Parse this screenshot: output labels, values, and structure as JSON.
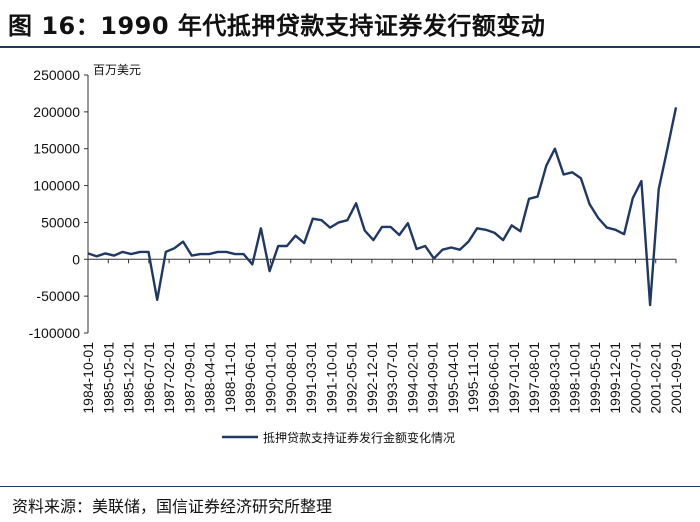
{
  "figure": {
    "title": "图 16：1990 年代抵押贷款支持证券发行额变动",
    "source": "资料来源：美联储，国信证券经济研究所整理"
  },
  "chart_data": {
    "type": "line",
    "title": "",
    "ylabel": "百万美元",
    "xlabel": "",
    "ylim": [
      -100000,
      250000
    ],
    "yticks": [
      -100000,
      -50000,
      0,
      50000,
      100000,
      150000,
      200000,
      250000
    ],
    "ytick_labels": [
      "-100000",
      "-50000",
      "0",
      "50000",
      "100000",
      "150000",
      "200000",
      "250000"
    ],
    "xtick_labels": [
      "1984-10-01",
      "1985-05-01",
      "1985-12-01",
      "1986-07-01",
      "1987-02-01",
      "1987-09-01",
      "1988-04-01",
      "1988-11-01",
      "1989-06-01",
      "1990-01-01",
      "1990-08-01",
      "1991-03-01",
      "1991-10-01",
      "1992-05-01",
      "1992-12-01",
      "1993-07-01",
      "1994-02-01",
      "1994-09-01",
      "1995-04-01",
      "1995-11-01",
      "1996-06-01",
      "1997-01-01",
      "1997-08-01",
      "1998-03-01",
      "1998-10-01",
      "1999-05-01",
      "1999-12-01",
      "2000-07-01",
      "2001-02-01",
      "2001-09-01"
    ],
    "legend_position": "bottom",
    "grid": false,
    "color": "#1f3864",
    "series": [
      {
        "name": "抵押贷款支持证券发行金额变化情况",
        "values": [
          8000,
          4000,
          8000,
          5000,
          10000,
          7000,
          10000,
          10000,
          -55000,
          10000,
          15000,
          24000,
          5000,
          7000,
          7000,
          10000,
          10000,
          7000,
          7000,
          -7000,
          42000,
          -16000,
          18000,
          18000,
          32000,
          22000,
          55000,
          53000,
          43000,
          50000,
          53000,
          76000,
          39000,
          26000,
          44000,
          44000,
          33000,
          49000,
          14000,
          18000,
          1000,
          13000,
          16000,
          13000,
          24000,
          42000,
          40000,
          36000,
          26000,
          46000,
          38000,
          82000,
          85000,
          127000,
          150000,
          115000,
          118000,
          110000,
          75000,
          56000,
          43000,
          40000,
          34000,
          83000,
          106000,
          -62000,
          95000,
          150000,
          206000
        ]
      }
    ]
  }
}
